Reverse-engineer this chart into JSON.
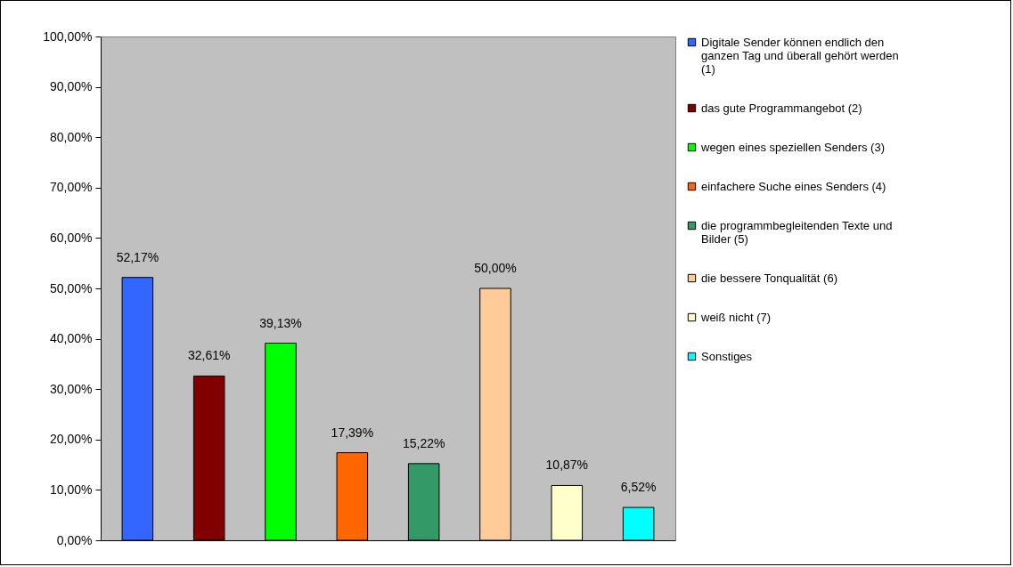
{
  "chart_data": {
    "type": "bar",
    "categories": [
      null,
      null,
      null,
      null,
      null,
      null,
      null,
      null
    ],
    "series": [
      {
        "name": "Digitale Sender können endlich den ganzen Tag und überall gehört werden (1)",
        "color": "#3366ff",
        "values": [
          52.17,
          null,
          null,
          null,
          null,
          null,
          null,
          null
        ],
        "value_labels": [
          "52,17%",
          null,
          null,
          null,
          null,
          null,
          null,
          null
        ]
      },
      {
        "name": "das gute Programmangebot (2)",
        "color": "#800000",
        "values": [
          null,
          32.61,
          null,
          null,
          null,
          null,
          null,
          null
        ],
        "value_labels": [
          null,
          "32,61%",
          null,
          null,
          null,
          null,
          null,
          null
        ]
      },
      {
        "name": "wegen eines speziellen Senders (3)",
        "color": "#00ff00",
        "values": [
          null,
          null,
          39.13,
          null,
          null,
          null,
          null,
          null
        ],
        "value_labels": [
          null,
          null,
          "39,13%",
          null,
          null,
          null,
          null,
          null
        ]
      },
      {
        "name": "einfachere Suche eines Senders (4)",
        "color": "#ff6600",
        "values": [
          null,
          null,
          null,
          17.39,
          null,
          null,
          null,
          null
        ],
        "value_labels": [
          null,
          null,
          null,
          "17,39%",
          null,
          null,
          null,
          null
        ]
      },
      {
        "name": "die programmbegleitenden Texte und Bilder (5)",
        "color": "#339966",
        "values": [
          null,
          null,
          null,
          null,
          15.22,
          null,
          null,
          null
        ],
        "value_labels": [
          null,
          null,
          null,
          null,
          "15,22%",
          null,
          null,
          null
        ]
      },
      {
        "name": "die bessere Tonqualität (6)",
        "color": "#ffcc99",
        "values": [
          null,
          null,
          null,
          null,
          null,
          50.0,
          null,
          null
        ],
        "value_labels": [
          null,
          null,
          null,
          null,
          null,
          "50,00%",
          null,
          null
        ]
      },
      {
        "name": "weiß nicht (7)",
        "color": "#ffffcc",
        "values": [
          null,
          null,
          null,
          null,
          null,
          null,
          10.87,
          null
        ],
        "value_labels": [
          null,
          null,
          null,
          null,
          null,
          null,
          "10,87%",
          null
        ]
      },
      {
        "name": "Sonstiges",
        "color": "#00ffff",
        "values": [
          null,
          null,
          null,
          null,
          null,
          null,
          null,
          6.52
        ],
        "value_labels": [
          null,
          null,
          null,
          null,
          null,
          null,
          null,
          "6,52%"
        ]
      }
    ],
    "ylim": [
      0,
      100
    ],
    "yticks": [
      {
        "value": 0,
        "label": "0,00%"
      },
      {
        "value": 10,
        "label": "10,00%"
      },
      {
        "value": 20,
        "label": "20,00%"
      },
      {
        "value": 30,
        "label": "30,00%"
      },
      {
        "value": 40,
        "label": "40,00%"
      },
      {
        "value": 50,
        "label": "50,00%"
      },
      {
        "value": 60,
        "label": "60,00%"
      },
      {
        "value": 70,
        "label": "70,00%"
      },
      {
        "value": 80,
        "label": "80,00%"
      },
      {
        "value": 90,
        "label": "90,00%"
      },
      {
        "value": 100,
        "label": "100,00%"
      }
    ],
    "legend": "right",
    "tick_labels": "y"
  }
}
